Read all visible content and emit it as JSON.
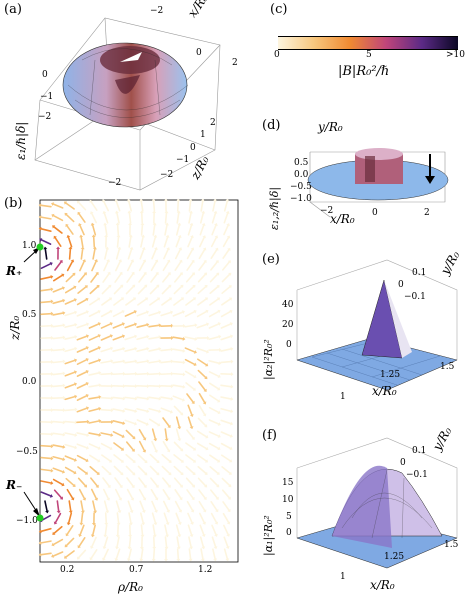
{
  "panels": {
    "a": {
      "label": "(a)",
      "xlabel": "x/R₀",
      "ylabel": "ε₁/ℏ|δ|",
      "zlabel": "z/R₀",
      "ticks_x": [
        "−2",
        "0",
        "2"
      ],
      "ticks_z": [
        "2",
        "1",
        "0",
        "−1",
        "−2"
      ],
      "ticks_e": [
        "0",
        "−1",
        "−2"
      ],
      "tick_corner": "−2"
    },
    "b": {
      "label": "(b)",
      "xlabel": "ρ/R₀",
      "ylabel": "z/R₀",
      "yticks": [
        "1.0",
        "0.5",
        "0.0",
        "−0.5",
        "−1.0"
      ],
      "xticks": [
        "0.2",
        "0.7",
        "1.2"
      ],
      "r_plus": "R₊",
      "r_minus": "R₋"
    },
    "c": {
      "label": "(c)",
      "title": "|B|R₀²/ℏ",
      "ticks": [
        "0",
        "5",
        ">10"
      ],
      "gradient": [
        "#fdf5df",
        "#f7c77e",
        "#f08a32",
        "#c0457a",
        "#5b2a86",
        "#0b0724"
      ]
    },
    "d": {
      "label": "(d)",
      "xlabel": "x/R₀",
      "ylabel": "y/R₀",
      "zlabel": "ε₁,₂/ℏ|δ|",
      "ticks_e": [
        "0.5",
        "0.0",
        "−0.5",
        "−1.0"
      ],
      "ticks_x": [
        "−2",
        "0",
        "2"
      ]
    },
    "e": {
      "label": "(e)",
      "zlabel": "|α₂|²R₀²",
      "xlabel": "x/R₀",
      "ylabel": "y/R₀",
      "zticks": [
        "40",
        "20",
        "0"
      ],
      "xticks": [
        "1",
        "1.25",
        "1.5"
      ],
      "yticks": [
        "0.1",
        "0",
        "−0.1"
      ]
    },
    "f": {
      "label": "(f)",
      "zlabel": "|α₁|²R₀²",
      "xlabel": "x/R₀",
      "ylabel": "y/R₀",
      "zticks": [
        "15",
        "10",
        "5",
        "0"
      ],
      "xticks": [
        "1",
        "1.25",
        "1.5"
      ],
      "yticks": [
        "0.1",
        "0",
        "−0.1"
      ]
    }
  }
}
